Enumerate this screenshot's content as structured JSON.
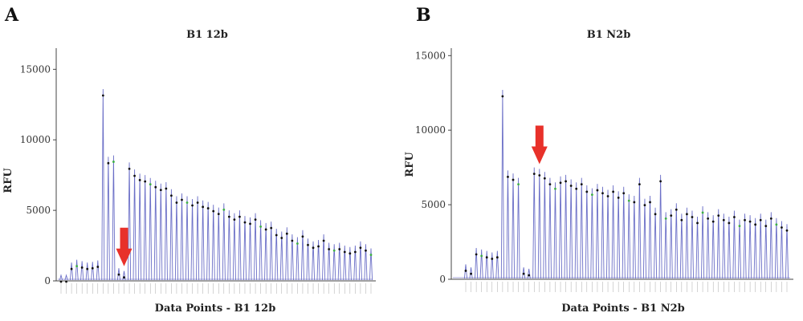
{
  "colors": {
    "peak": "#6b6fc7",
    "dot": "#111111",
    "dot_green": "#3cb043",
    "arrow": "#e8312a",
    "axis": "#444444",
    "baseline": "#8a8ad0"
  },
  "panels": [
    {
      "letter": "A",
      "title": "B1 12b",
      "xlabel": "Data Points - B1 12b",
      "ylabel": "RFU"
    },
    {
      "letter": "B",
      "title": "B1 N2b",
      "xlabel": "Data Points - B1 N2b",
      "ylabel": "RFU"
    }
  ],
  "chart_data": [
    {
      "type": "bar",
      "title": "B1 12b",
      "xlabel": "Data Points - B1 12b",
      "ylabel": "RFU",
      "ylim": [
        0,
        16500
      ],
      "yticks": [
        0,
        5000,
        10000,
        15000
      ],
      "grid": false,
      "arrow_at_index": 12,
      "series": [
        {
          "values": [
            400,
            400,
            1300,
            1500,
            1400,
            1300,
            1350,
            1450,
            13600,
            8800,
            8900,
            900,
            700,
            8400,
            7900,
            7600,
            7500,
            7300,
            7100,
            6900,
            7000,
            6500,
            6000,
            6200,
            6000,
            5800,
            6000,
            5700,
            5600,
            5400,
            5200,
            5500,
            5000,
            4800,
            5000,
            4600,
            4500,
            4800,
            4300,
            4100,
            4200,
            3700,
            3500,
            3800,
            3300,
            3100,
            3600,
            3000,
            2800,
            2900,
            3300,
            2700,
            2600,
            2700,
            2500,
            2400,
            2500,
            2800,
            2600,
            2300
          ]
        }
      ]
    },
    {
      "type": "bar",
      "title": "B1 N2b",
      "xlabel": "Data Points - B1 N2b",
      "ylabel": "RFU",
      "ylim": [
        0,
        15500
      ],
      "yticks": [
        0,
        5000,
        10000,
        15000
      ],
      "grid": false,
      "arrow_at_index": 14,
      "series": [
        {
          "values": [
            1000,
            800,
            2100,
            2000,
            1900,
            1800,
            1900,
            12700,
            7300,
            7100,
            6800,
            800,
            700,
            7500,
            7400,
            7200,
            6800,
            6500,
            6900,
            7000,
            6700,
            6500,
            6800,
            6300,
            6100,
            6400,
            6200,
            6000,
            6300,
            5900,
            6200,
            5700,
            5600,
            6800,
            5400,
            5600,
            4800,
            7000,
            4500,
            4700,
            5100,
            4400,
            4800,
            4600,
            4200,
            4900,
            4500,
            4300,
            4700,
            4400,
            4200,
            4600,
            4000,
            4400,
            4300,
            4100,
            4400,
            4000,
            4500,
            4100,
            3900,
            3700
          ]
        }
      ]
    }
  ]
}
